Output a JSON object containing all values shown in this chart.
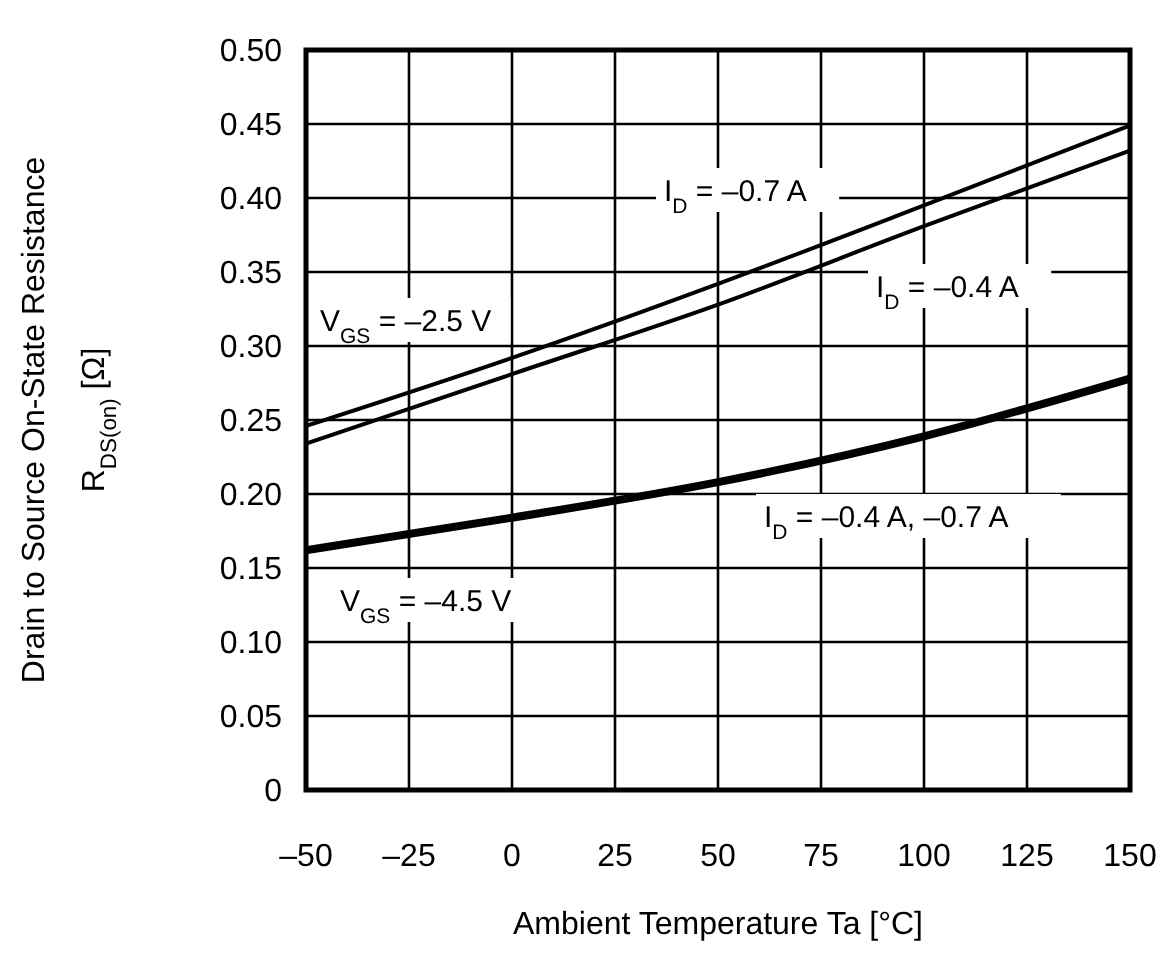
{
  "chart_data": {
    "type": "line",
    "xlabel": "Ambient Temperature Ta [°C]",
    "ylabel": "Drain to Source On-State Resistance\nR$_{DS(on)}$ [Ω]",
    "x": [
      -50,
      0,
      50,
      100,
      150
    ],
    "series": [
      {
        "color": "#000000",
        "values": [
          0.246,
          0.292,
          0.342,
          0.395,
          0.449
        ]
      },
      {
        "color": "#000000",
        "values": [
          0.234,
          0.281,
          0.328,
          0.381,
          0.432
        ]
      },
      {
        "color": "#000000",
        "values": [
          0.162,
          0.184,
          0.208,
          0.239,
          0.278
        ]
      }
    ],
    "xlim": [
      -50,
      150
    ],
    "ylim": [
      0,
      0.5
    ],
    "xticks": [
      {
        "value": -50,
        "label": "–50"
      },
      {
        "value": -25,
        "label": "–25"
      },
      0,
      25,
      50,
      75,
      100,
      125,
      150
    ],
    "yticks": [
      {
        "value": 0,
        "label": "0"
      },
      {
        "value": 0.05,
        "label": "0.05"
      },
      {
        "value": 0.1,
        "label": "0.10"
      },
      {
        "value": 0.15,
        "label": "0.15"
      },
      {
        "value": 0.2,
        "label": "0.20"
      },
      {
        "value": 0.25,
        "label": "0.25"
      },
      {
        "value": 0.3,
        "label": "0.30"
      },
      {
        "value": 0.35,
        "label": "0.35"
      },
      {
        "value": 0.4,
        "label": "0.40"
      },
      {
        "value": 0.45,
        "label": "0.45"
      },
      {
        "value": 0.5,
        "label": "0.50"
      }
    ],
    "grid": true,
    "annotations": [
      "I$_{D}$ = –0.7 A",
      "I$_{D}$ = –0.4 A",
      "V$_{GS}$ = –2.5 V",
      "I$_{D}$ = –0.4 A, –0.7 A",
      "V$_{GS}$ = –4.5 V"
    ]
  }
}
